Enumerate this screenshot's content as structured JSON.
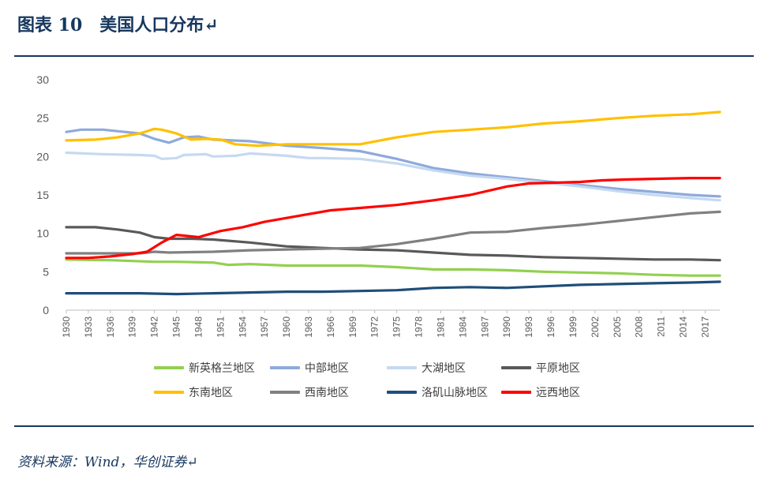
{
  "header": {
    "title": "图表 10　美国人口分布↵"
  },
  "footer": {
    "source": "资料来源：Wind，华创证券↵"
  },
  "chart_data": {
    "type": "line",
    "ylim": [
      0,
      30
    ],
    "yticks": [
      0,
      5,
      10,
      15,
      20,
      25,
      30
    ],
    "xrange": [
      1930,
      2019
    ],
    "xticks": [
      1930,
      1933,
      1936,
      1939,
      1942,
      1945,
      1948,
      1951,
      1954,
      1957,
      1960,
      1963,
      1966,
      1969,
      1972,
      1975,
      1978,
      1981,
      1984,
      1987,
      1990,
      1993,
      1996,
      1999,
      2002,
      2005,
      2008,
      2011,
      2014,
      2017
    ],
    "grid": false,
    "legend_position": "bottom",
    "series": [
      {
        "name": "新英格兰地区",
        "color": "#92d050",
        "points": [
          [
            1930,
            6.6
          ],
          [
            1936,
            6.5
          ],
          [
            1942,
            6.3
          ],
          [
            1945,
            6.3
          ],
          [
            1950,
            6.2
          ],
          [
            1952,
            5.9
          ],
          [
            1955,
            6.0
          ],
          [
            1960,
            5.8
          ],
          [
            1965,
            5.8
          ],
          [
            1970,
            5.8
          ],
          [
            1975,
            5.6
          ],
          [
            1980,
            5.3
          ],
          [
            1985,
            5.3
          ],
          [
            1990,
            5.2
          ],
          [
            1995,
            5.0
          ],
          [
            2000,
            4.9
          ],
          [
            2005,
            4.8
          ],
          [
            2010,
            4.6
          ],
          [
            2015,
            4.5
          ],
          [
            2019,
            4.5
          ]
        ]
      },
      {
        "name": "中部地区",
        "color": "#8eaadb",
        "points": [
          [
            1930,
            23.2
          ],
          [
            1932,
            23.5
          ],
          [
            1935,
            23.5
          ],
          [
            1938,
            23.2
          ],
          [
            1940,
            23.0
          ],
          [
            1942,
            22.3
          ],
          [
            1944,
            21.8
          ],
          [
            1946,
            22.5
          ],
          [
            1948,
            22.6
          ],
          [
            1950,
            22.2
          ],
          [
            1955,
            22.0
          ],
          [
            1960,
            21.4
          ],
          [
            1965,
            21.1
          ],
          [
            1970,
            20.7
          ],
          [
            1975,
            19.7
          ],
          [
            1980,
            18.5
          ],
          [
            1985,
            17.8
          ],
          [
            1990,
            17.3
          ],
          [
            1995,
            16.8
          ],
          [
            2000,
            16.3
          ],
          [
            2005,
            15.8
          ],
          [
            2010,
            15.4
          ],
          [
            2015,
            15.0
          ],
          [
            2019,
            14.8
          ]
        ]
      },
      {
        "name": "大湖地区",
        "color": "#c5d9f1",
        "points": [
          [
            1930,
            20.5
          ],
          [
            1935,
            20.3
          ],
          [
            1940,
            20.2
          ],
          [
            1942,
            20.1
          ],
          [
            1943,
            19.7
          ],
          [
            1945,
            19.8
          ],
          [
            1946,
            20.2
          ],
          [
            1949,
            20.3
          ],
          [
            1950,
            20.0
          ],
          [
            1953,
            20.1
          ],
          [
            1955,
            20.4
          ],
          [
            1960,
            20.1
          ],
          [
            1963,
            19.8
          ],
          [
            1965,
            19.8
          ],
          [
            1970,
            19.7
          ],
          [
            1975,
            19.1
          ],
          [
            1980,
            18.2
          ],
          [
            1985,
            17.5
          ],
          [
            1990,
            17.1
          ],
          [
            1995,
            16.6
          ],
          [
            2000,
            16.1
          ],
          [
            2005,
            15.5
          ],
          [
            2010,
            15.0
          ],
          [
            2015,
            14.6
          ],
          [
            2019,
            14.3
          ]
        ]
      },
      {
        "name": "平原地区",
        "color": "#595959",
        "points": [
          [
            1930,
            10.8
          ],
          [
            1934,
            10.8
          ],
          [
            1937,
            10.5
          ],
          [
            1940,
            10.1
          ],
          [
            1942,
            9.5
          ],
          [
            1944,
            9.3
          ],
          [
            1947,
            9.3
          ],
          [
            1950,
            9.2
          ],
          [
            1955,
            8.8
          ],
          [
            1960,
            8.3
          ],
          [
            1965,
            8.1
          ],
          [
            1970,
            7.9
          ],
          [
            1975,
            7.8
          ],
          [
            1980,
            7.5
          ],
          [
            1985,
            7.2
          ],
          [
            1990,
            7.1
          ],
          [
            1995,
            6.9
          ],
          [
            2000,
            6.8
          ],
          [
            2005,
            6.7
          ],
          [
            2010,
            6.6
          ],
          [
            2015,
            6.6
          ],
          [
            2019,
            6.5
          ]
        ]
      },
      {
        "name": "东南地区",
        "color": "#ffc000",
        "points": [
          [
            1930,
            22.1
          ],
          [
            1934,
            22.2
          ],
          [
            1937,
            22.5
          ],
          [
            1940,
            23.0
          ],
          [
            1942,
            23.6
          ],
          [
            1943,
            23.5
          ],
          [
            1945,
            23.0
          ],
          [
            1947,
            22.2
          ],
          [
            1949,
            22.3
          ],
          [
            1951,
            22.2
          ],
          [
            1953,
            21.6
          ],
          [
            1956,
            21.4
          ],
          [
            1960,
            21.6
          ],
          [
            1965,
            21.6
          ],
          [
            1970,
            21.6
          ],
          [
            1975,
            22.5
          ],
          [
            1980,
            23.2
          ],
          [
            1985,
            23.5
          ],
          [
            1990,
            23.8
          ],
          [
            1995,
            24.3
          ],
          [
            2000,
            24.6
          ],
          [
            2005,
            25.0
          ],
          [
            2010,
            25.3
          ],
          [
            2015,
            25.5
          ],
          [
            2019,
            25.8
          ]
        ]
      },
      {
        "name": "西南地区",
        "color": "#808080",
        "points": [
          [
            1930,
            7.4
          ],
          [
            1935,
            7.4
          ],
          [
            1940,
            7.4
          ],
          [
            1942,
            7.6
          ],
          [
            1944,
            7.5
          ],
          [
            1950,
            7.6
          ],
          [
            1955,
            7.8
          ],
          [
            1960,
            7.9
          ],
          [
            1965,
            8.0
          ],
          [
            1970,
            8.1
          ],
          [
            1975,
            8.6
          ],
          [
            1980,
            9.3
          ],
          [
            1985,
            10.1
          ],
          [
            1990,
            10.2
          ],
          [
            1995,
            10.7
          ],
          [
            2000,
            11.1
          ],
          [
            2005,
            11.6
          ],
          [
            2010,
            12.1
          ],
          [
            2015,
            12.6
          ],
          [
            2019,
            12.8
          ]
        ]
      },
      {
        "name": "洛矶山脉地区",
        "color": "#1f4e79",
        "points": [
          [
            1930,
            2.2
          ],
          [
            1940,
            2.2
          ],
          [
            1945,
            2.1
          ],
          [
            1950,
            2.2
          ],
          [
            1955,
            2.3
          ],
          [
            1960,
            2.4
          ],
          [
            1965,
            2.4
          ],
          [
            1970,
            2.5
          ],
          [
            1975,
            2.6
          ],
          [
            1980,
            2.9
          ],
          [
            1985,
            3.0
          ],
          [
            1990,
            2.9
          ],
          [
            1995,
            3.1
          ],
          [
            2000,
            3.3
          ],
          [
            2005,
            3.4
          ],
          [
            2010,
            3.5
          ],
          [
            2015,
            3.6
          ],
          [
            2019,
            3.7
          ]
        ]
      },
      {
        "name": "远西地区",
        "color": "#ff0000",
        "points": [
          [
            1930,
            6.8
          ],
          [
            1933,
            6.8
          ],
          [
            1936,
            7.0
          ],
          [
            1939,
            7.3
          ],
          [
            1941,
            7.6
          ],
          [
            1943,
            8.8
          ],
          [
            1945,
            9.8
          ],
          [
            1948,
            9.5
          ],
          [
            1951,
            10.3
          ],
          [
            1954,
            10.8
          ],
          [
            1957,
            11.5
          ],
          [
            1960,
            12.0
          ],
          [
            1963,
            12.5
          ],
          [
            1966,
            13.0
          ],
          [
            1970,
            13.3
          ],
          [
            1975,
            13.7
          ],
          [
            1980,
            14.3
          ],
          [
            1985,
            15.0
          ],
          [
            1990,
            16.1
          ],
          [
            1993,
            16.5
          ],
          [
            1997,
            16.6
          ],
          [
            2000,
            16.7
          ],
          [
            2003,
            16.9
          ],
          [
            2006,
            17.0
          ],
          [
            2010,
            17.1
          ],
          [
            2015,
            17.2
          ],
          [
            2019,
            17.2
          ]
        ]
      }
    ]
  }
}
